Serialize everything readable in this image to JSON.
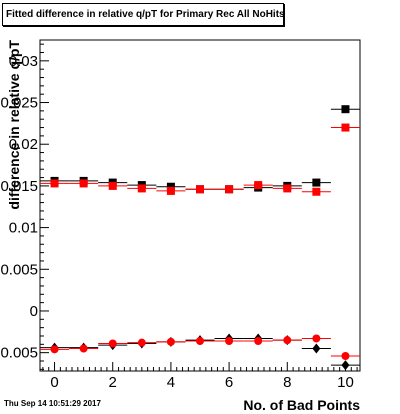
{
  "title": "Fitted difference in relative q/pT for Primary Rec All NoHits",
  "timestamp": "Thu Sep 14 10:51:29 2017",
  "chart_data": {
    "type": "scatter",
    "title": "Fitted difference in relative q/pT for Primary Rec All NoHits",
    "xlabel": "No. of Bad Points",
    "ylabel": "difference in relative q/pT",
    "xlim": [
      -0.5,
      10.5
    ],
    "ylim": [
      -0.0072,
      0.0325
    ],
    "x_ticks": [
      0,
      2,
      4,
      6,
      8,
      10
    ],
    "x_tick_labels": [
      "0",
      "2",
      "4",
      "6",
      "8",
      "10"
    ],
    "y_ticks": [
      -0.005,
      0,
      0.005,
      0.01,
      0.015,
      0.02,
      0.025,
      0.03
    ],
    "y_tick_labels": [
      "-0.005",
      "0",
      "0.005",
      "0.01",
      "0.015",
      "0.02",
      "0.025",
      "0.03"
    ],
    "grid": false,
    "series": [
      {
        "marker": "square",
        "color": "#000000",
        "x": [
          0,
          1,
          2,
          3,
          4,
          5,
          6,
          7,
          8,
          9,
          10
        ],
        "values": [
          0.0156,
          0.0156,
          0.0154,
          0.0151,
          0.0149,
          0.0146,
          0.0146,
          0.0148,
          0.015,
          0.0154,
          0.0242
        ]
      },
      {
        "marker": "square",
        "color": "#ff0000",
        "x": [
          0,
          1,
          2,
          3,
          4,
          5,
          6,
          7,
          8,
          9,
          10
        ],
        "values": [
          0.0153,
          0.0153,
          0.015,
          0.0147,
          0.0144,
          0.0146,
          0.0146,
          0.0151,
          0.0147,
          0.0143,
          0.022
        ]
      },
      {
        "marker": "diamond",
        "color": "#000000",
        "x": [
          0,
          1,
          2,
          3,
          4,
          5,
          6,
          7,
          8,
          9,
          10
        ],
        "values": [
          -0.0044,
          -0.0044,
          -0.0041,
          -0.0039,
          -0.0037,
          -0.0035,
          -0.0033,
          -0.0033,
          -0.0035,
          -0.0045,
          -0.0065
        ]
      },
      {
        "marker": "circle",
        "color": "#ff0000",
        "x": [
          0,
          1,
          2,
          3,
          4,
          5,
          6,
          7,
          8,
          9,
          10
        ],
        "values": [
          -0.0046,
          -0.0045,
          -0.0039,
          -0.0038,
          -0.0037,
          -0.0036,
          -0.0036,
          -0.0036,
          -0.0035,
          -0.0033,
          -0.0054
        ]
      }
    ]
  }
}
